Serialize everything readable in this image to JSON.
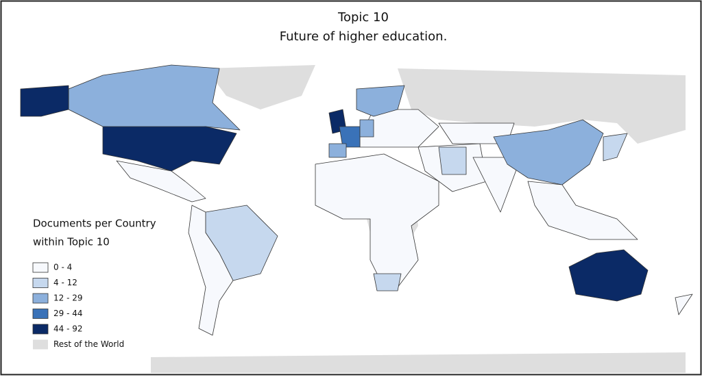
{
  "title": [
    "Topic 10",
    "Future of higher education."
  ],
  "legend": {
    "title": [
      "Documents per Country",
      "within Topic 10"
    ],
    "items": [
      {
        "label": "0 - 4",
        "color": "#f7f9fd"
      },
      {
        "label": "4 - 12",
        "color": "#c6d8ee"
      },
      {
        "label": "12 - 29",
        "color": "#8cb0dc"
      },
      {
        "label": "29 - 44",
        "color": "#3a72b8"
      },
      {
        "label": "44 - 92",
        "color": "#0b2a66"
      },
      {
        "label": "Rest of the World",
        "color": "#dedede"
      }
    ]
  }
}
